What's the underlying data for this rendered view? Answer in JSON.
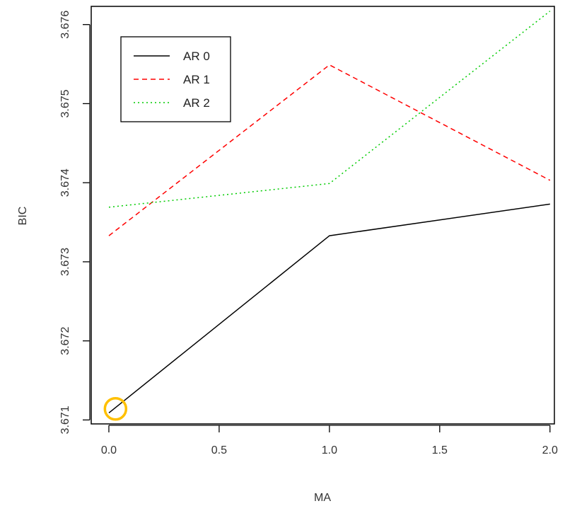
{
  "chart_data": {
    "type": "line",
    "title": "",
    "xlabel": "MA",
    "ylabel": "BIC",
    "xlim": [
      -0.08,
      2.02
    ],
    "ylim": [
      3.67095,
      3.67623
    ],
    "x": [
      0,
      1,
      2
    ],
    "x_ticks": [
      0,
      0.5,
      1,
      1.5,
      2
    ],
    "x_tick_labels": [
      "0.0",
      "0.5",
      "1.0",
      "1.5",
      "2.0"
    ],
    "y_ticks": [
      3.671,
      3.672,
      3.673,
      3.674,
      3.675,
      3.676
    ],
    "y_tick_labels": [
      "3.671",
      "3.672",
      "3.673",
      "3.674",
      "3.675",
      "3.676"
    ],
    "grid": false,
    "legend_position": "top-left",
    "series": [
      {
        "name": "AR 0",
        "values": [
          3.67109,
          3.67333,
          3.67373
        ],
        "color": "#000000",
        "dash": "solid"
      },
      {
        "name": "AR 1",
        "values": [
          3.67333,
          3.67549,
          3.67403
        ],
        "color": "#ff0000",
        "dash": "dashed"
      },
      {
        "name": "AR 2",
        "values": [
          3.67369,
          3.67399,
          3.67617
        ],
        "color": "#00cc00",
        "dash": "dotted"
      }
    ],
    "annotations": [
      {
        "type": "circle",
        "x": 0.03,
        "y": 3.67114,
        "color": "#ffc000"
      }
    ]
  }
}
